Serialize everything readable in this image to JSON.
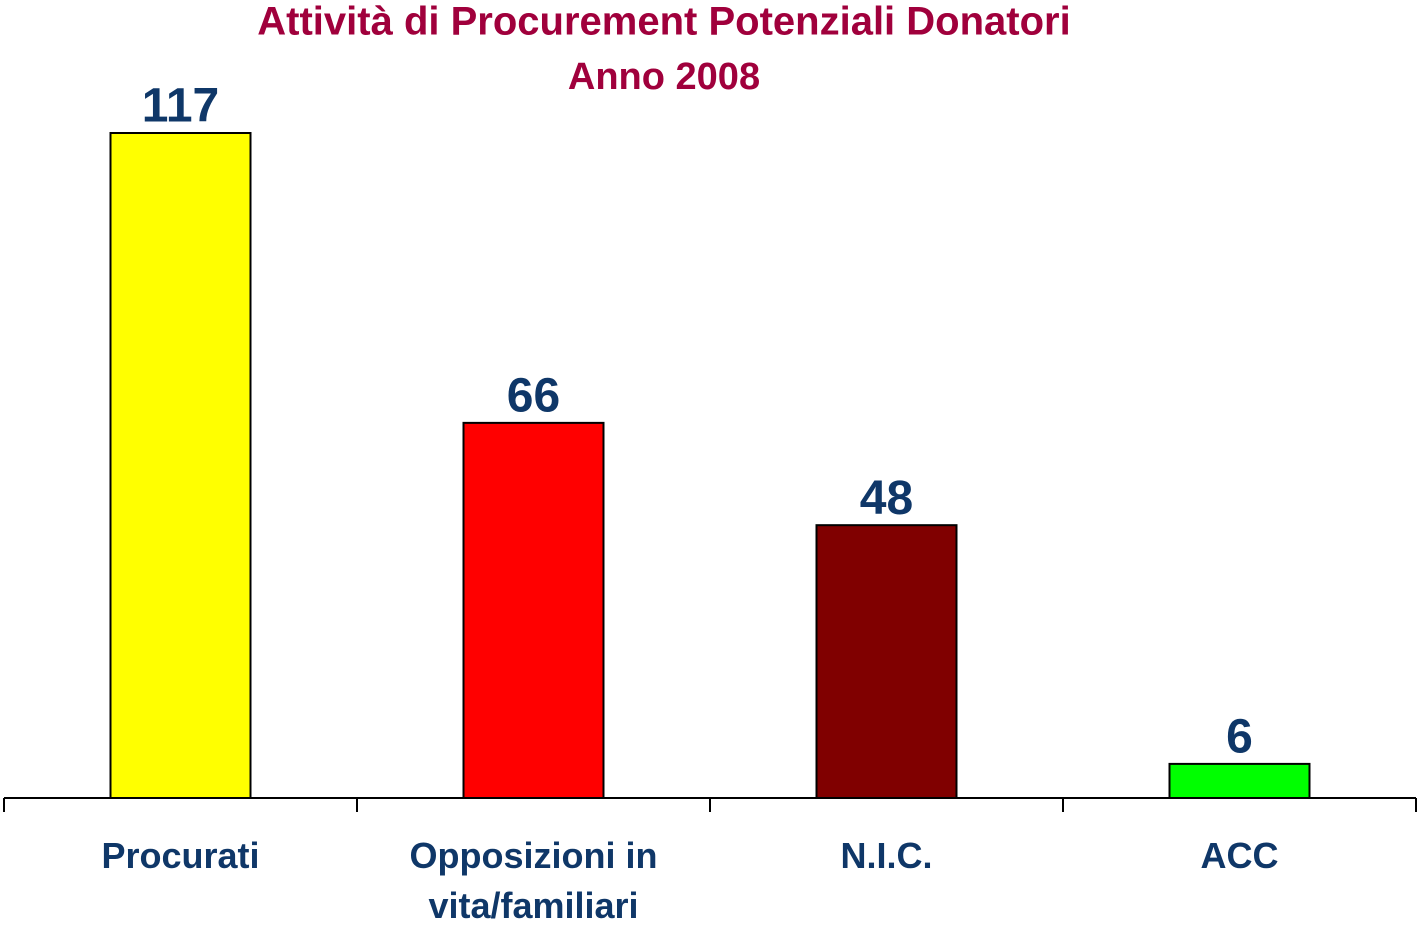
{
  "chart_data": {
    "type": "bar",
    "title": "Attività di Procurement Potenziali Donatori",
    "subtitle": "Anno 2008",
    "categories": [
      "Procurati",
      "Opposizioni in vita/familiari",
      "N.I.C.",
      "ACC"
    ],
    "values": [
      117,
      66,
      48,
      6
    ],
    "colors": [
      "#ffff00",
      "#ff0000",
      "#800000",
      "#00ff00"
    ]
  }
}
